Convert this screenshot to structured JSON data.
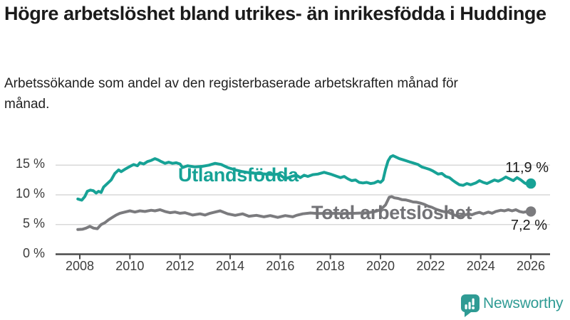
{
  "header": {
    "title": "Högre arbetslöshet bland utrikes- än inrikesfödda i Huddinge",
    "subtitle": "Arbetssökande som andel av den registerbaserade arbetskraften månad för månad."
  },
  "footer": {
    "brand": "Newsworthy",
    "logo_icon": "speech-bubble-bar-chart-icon"
  },
  "colors": {
    "series_utlandsfodda": "#17a296",
    "series_total": "#7b7b7e",
    "label_total": "#737377",
    "grid": "#d9d9d9",
    "axis": "#4a4a4a",
    "tick_label": "#3d3d3d",
    "value_label": "#1a1a1a",
    "brand": "#2f9b94",
    "title": "#1b1b1b"
  },
  "chart_data": {
    "type": "line",
    "title": "Högre arbetslöshet bland utrikes- än inrikesfödda i Huddinge",
    "xlabel": "",
    "ylabel": "",
    "unit": "%",
    "grid": "horizontal",
    "legend": "inline-labels-on-lines",
    "x_axis": {
      "range": [
        2007.9,
        2026.8
      ],
      "tick_years": [
        2008,
        2010,
        2012,
        2014,
        2016,
        2018,
        2020,
        2022,
        2024,
        2026
      ],
      "ticks": [
        "2008",
        "2010",
        "2012",
        "2014",
        "2016",
        "2018",
        "2020",
        "2022",
        "2024",
        "2026"
      ]
    },
    "y_axis": {
      "range": [
        0,
        17.5
      ],
      "ticks": [
        {
          "value": 0,
          "label": "0 %"
        },
        {
          "value": 5,
          "label": "5 %"
        },
        {
          "value": 10,
          "label": "10 %"
        },
        {
          "value": 15,
          "label": "15 %"
        }
      ]
    },
    "series": [
      {
        "name": "Utlandsfödda",
        "color": "#17a296",
        "end_label": "11,9 %",
        "end_value": 11.9,
        "points": [
          [
            2007.92,
            9.3
          ],
          [
            2008.0,
            9.2
          ],
          [
            2008.08,
            9.1
          ],
          [
            2008.2,
            9.7
          ],
          [
            2008.3,
            10.6
          ],
          [
            2008.42,
            10.8
          ],
          [
            2008.54,
            10.7
          ],
          [
            2008.65,
            10.3
          ],
          [
            2008.75,
            10.6
          ],
          [
            2008.85,
            10.4
          ],
          [
            2008.95,
            11.3
          ],
          [
            2009.1,
            11.9
          ],
          [
            2009.25,
            12.5
          ],
          [
            2009.4,
            13.6
          ],
          [
            2009.55,
            14.2
          ],
          [
            2009.65,
            13.9
          ],
          [
            2009.8,
            14.3
          ],
          [
            2009.92,
            14.6
          ],
          [
            2010.05,
            14.9
          ],
          [
            2010.15,
            15.1
          ],
          [
            2010.3,
            14.9
          ],
          [
            2010.4,
            15.4
          ],
          [
            2010.55,
            15.2
          ],
          [
            2010.7,
            15.6
          ],
          [
            2010.85,
            15.8
          ],
          [
            2011.0,
            16.1
          ],
          [
            2011.12,
            15.9
          ],
          [
            2011.25,
            15.6
          ],
          [
            2011.4,
            15.3
          ],
          [
            2011.55,
            15.5
          ],
          [
            2011.7,
            15.3
          ],
          [
            2011.85,
            15.4
          ],
          [
            2012.0,
            15.2
          ],
          [
            2012.1,
            14.6
          ],
          [
            2012.3,
            14.9
          ],
          [
            2012.6,
            14.7
          ],
          [
            2012.9,
            14.8
          ],
          [
            2013.15,
            15.0
          ],
          [
            2013.4,
            15.3
          ],
          [
            2013.65,
            15.1
          ],
          [
            2013.9,
            14.6
          ],
          [
            2014.2,
            14.2
          ],
          [
            2014.5,
            13.9
          ],
          [
            2014.8,
            13.7
          ],
          [
            2015.1,
            13.6
          ],
          [
            2015.4,
            13.5
          ],
          [
            2015.7,
            13.4
          ],
          [
            2015.95,
            13.5
          ],
          [
            2016.2,
            12.7
          ],
          [
            2016.45,
            13.1
          ],
          [
            2016.65,
            13.3
          ],
          [
            2016.8,
            12.9
          ],
          [
            2016.95,
            13.3
          ],
          [
            2017.1,
            13.1
          ],
          [
            2017.3,
            13.4
          ],
          [
            2017.5,
            13.5
          ],
          [
            2017.75,
            13.8
          ],
          [
            2018.0,
            13.5
          ],
          [
            2018.2,
            13.2
          ],
          [
            2018.4,
            12.9
          ],
          [
            2018.55,
            13.1
          ],
          [
            2018.7,
            12.7
          ],
          [
            2018.85,
            12.4
          ],
          [
            2019.0,
            12.5
          ],
          [
            2019.15,
            12.1
          ],
          [
            2019.3,
            12.0
          ],
          [
            2019.45,
            12.1
          ],
          [
            2019.6,
            11.9
          ],
          [
            2019.75,
            12.0
          ],
          [
            2019.9,
            12.3
          ],
          [
            2020.0,
            12.1
          ],
          [
            2020.1,
            12.5
          ],
          [
            2020.2,
            14.3
          ],
          [
            2020.3,
            15.7
          ],
          [
            2020.4,
            16.4
          ],
          [
            2020.5,
            16.6
          ],
          [
            2020.6,
            16.4
          ],
          [
            2020.75,
            16.1
          ],
          [
            2020.9,
            15.9
          ],
          [
            2021.05,
            15.7
          ],
          [
            2021.2,
            15.5
          ],
          [
            2021.35,
            15.3
          ],
          [
            2021.5,
            15.1
          ],
          [
            2021.65,
            14.7
          ],
          [
            2021.8,
            14.5
          ],
          [
            2021.95,
            14.3
          ],
          [
            2022.1,
            14.0
          ],
          [
            2022.3,
            13.5
          ],
          [
            2022.45,
            13.6
          ],
          [
            2022.6,
            13.1
          ],
          [
            2022.75,
            12.9
          ],
          [
            2022.9,
            12.4
          ],
          [
            2023.0,
            12.1
          ],
          [
            2023.15,
            11.7
          ],
          [
            2023.3,
            11.6
          ],
          [
            2023.45,
            11.9
          ],
          [
            2023.6,
            11.7
          ],
          [
            2023.8,
            12.0
          ],
          [
            2023.95,
            12.4
          ],
          [
            2024.1,
            12.1
          ],
          [
            2024.25,
            11.9
          ],
          [
            2024.4,
            12.2
          ],
          [
            2024.55,
            12.5
          ],
          [
            2024.7,
            12.3
          ],
          [
            2024.85,
            12.6
          ],
          [
            2025.0,
            13.0
          ],
          [
            2025.15,
            12.7
          ],
          [
            2025.3,
            12.4
          ],
          [
            2025.45,
            12.9
          ],
          [
            2025.6,
            12.5
          ],
          [
            2025.75,
            12.0
          ],
          [
            2025.9,
            11.7
          ],
          [
            2026.0,
            11.9
          ]
        ]
      },
      {
        "name": "Total arbetslöshet",
        "color": "#7b7b7e",
        "end_label": "7,2 %",
        "end_value": 7.2,
        "points": [
          [
            2007.92,
            4.15
          ],
          [
            2008.1,
            4.2
          ],
          [
            2008.25,
            4.4
          ],
          [
            2008.4,
            4.7
          ],
          [
            2008.55,
            4.4
          ],
          [
            2008.7,
            4.3
          ],
          [
            2008.85,
            5.0
          ],
          [
            2009.0,
            5.3
          ],
          [
            2009.15,
            5.8
          ],
          [
            2009.3,
            6.2
          ],
          [
            2009.45,
            6.6
          ],
          [
            2009.6,
            6.9
          ],
          [
            2009.8,
            7.1
          ],
          [
            2010.0,
            7.3
          ],
          [
            2010.2,
            7.1
          ],
          [
            2010.4,
            7.3
          ],
          [
            2010.6,
            7.2
          ],
          [
            2010.85,
            7.4
          ],
          [
            2011.0,
            7.3
          ],
          [
            2011.2,
            7.5
          ],
          [
            2011.4,
            7.2
          ],
          [
            2011.6,
            7.0
          ],
          [
            2011.8,
            7.1
          ],
          [
            2012.0,
            6.9
          ],
          [
            2012.2,
            7.0
          ],
          [
            2012.5,
            6.6
          ],
          [
            2012.8,
            6.8
          ],
          [
            2013.0,
            6.6
          ],
          [
            2013.2,
            6.9
          ],
          [
            2013.4,
            7.1
          ],
          [
            2013.6,
            7.3
          ],
          [
            2013.9,
            6.8
          ],
          [
            2014.2,
            6.55
          ],
          [
            2014.5,
            6.8
          ],
          [
            2014.75,
            6.4
          ],
          [
            2015.05,
            6.55
          ],
          [
            2015.35,
            6.3
          ],
          [
            2015.6,
            6.5
          ],
          [
            2015.9,
            6.2
          ],
          [
            2016.2,
            6.5
          ],
          [
            2016.5,
            6.3
          ],
          [
            2016.65,
            6.55
          ],
          [
            2016.9,
            6.8
          ],
          [
            2017.2,
            6.95
          ],
          [
            2017.5,
            6.85
          ],
          [
            2018.0,
            6.9
          ],
          [
            2018.5,
            6.85
          ],
          [
            2019.0,
            6.9
          ],
          [
            2019.5,
            7.0
          ],
          [
            2019.8,
            7.2
          ],
          [
            2020.0,
            7.5
          ],
          [
            2020.2,
            8.3
          ],
          [
            2020.35,
            9.6
          ],
          [
            2020.45,
            9.7
          ],
          [
            2020.55,
            9.5
          ],
          [
            2020.7,
            9.4
          ],
          [
            2020.85,
            9.2
          ],
          [
            2021.0,
            9.15
          ],
          [
            2021.15,
            9.0
          ],
          [
            2021.3,
            8.8
          ],
          [
            2021.45,
            8.75
          ],
          [
            2021.6,
            8.6
          ],
          [
            2021.75,
            8.4
          ],
          [
            2021.9,
            8.1
          ],
          [
            2022.05,
            7.9
          ],
          [
            2022.2,
            7.6
          ],
          [
            2022.4,
            7.3
          ],
          [
            2022.55,
            7.15
          ],
          [
            2022.7,
            7.1
          ],
          [
            2022.8,
            6.9
          ],
          [
            2022.95,
            6.6
          ],
          [
            2023.1,
            6.4
          ],
          [
            2023.3,
            6.5
          ],
          [
            2023.5,
            6.8
          ],
          [
            2023.65,
            6.65
          ],
          [
            2023.8,
            6.9
          ],
          [
            2023.95,
            7.05
          ],
          [
            2024.1,
            6.8
          ],
          [
            2024.3,
            7.1
          ],
          [
            2024.45,
            6.9
          ],
          [
            2024.6,
            7.2
          ],
          [
            2024.8,
            7.4
          ],
          [
            2024.95,
            7.3
          ],
          [
            2025.1,
            7.5
          ],
          [
            2025.25,
            7.3
          ],
          [
            2025.4,
            7.5
          ],
          [
            2025.55,
            7.2
          ],
          [
            2025.7,
            7.05
          ],
          [
            2025.85,
            7.2
          ],
          [
            2026.0,
            7.2
          ]
        ]
      }
    ]
  }
}
